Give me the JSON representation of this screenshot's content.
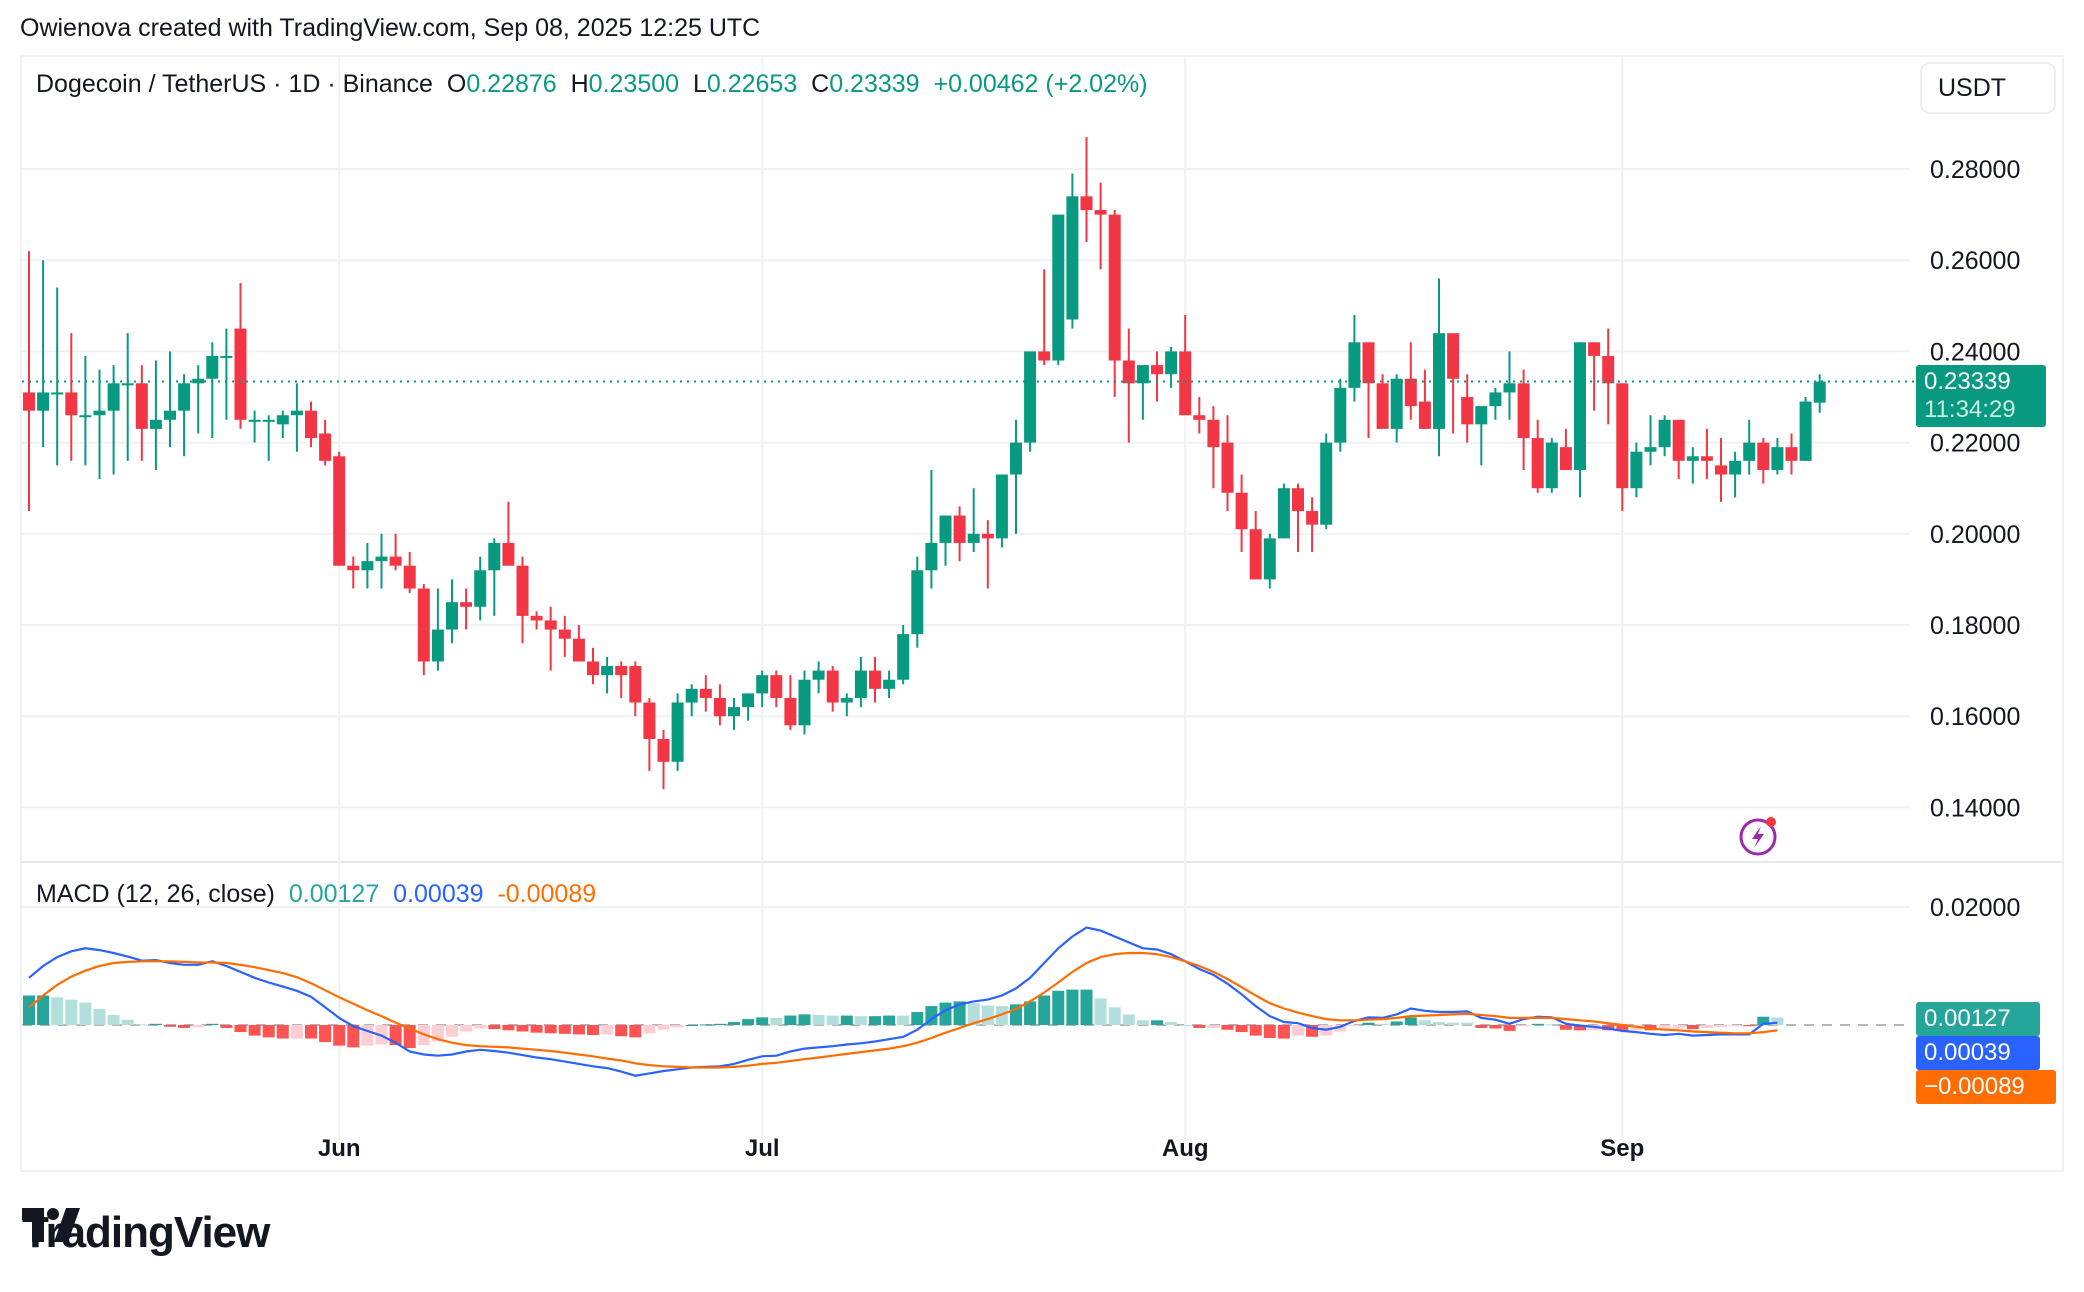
{
  "credit": "Owienova created with TradingView.com, Sep 08, 2025 12:25 UTC",
  "legend": {
    "symbol": "Dogecoin / TetherUS · 1D · Binance",
    "o_label": "O",
    "o": "0.22876",
    "h_label": "H",
    "h": "0.23500",
    "l_label": "L",
    "l": "0.22653",
    "c_label": "C",
    "c": "0.23339",
    "change": "+0.00462 (+2.02%)"
  },
  "currency_button": "USDT",
  "last_price": {
    "value": "0.23339",
    "countdown": "11:34:29"
  },
  "macd_legend": {
    "title": "MACD (12, 26, close)",
    "histogram": "0.00127",
    "macd": "0.00039",
    "signal": "-0.00089"
  },
  "macd_tags": {
    "histogram": "0.00127",
    "macd": "0.00039",
    "signal": "−0.00089"
  },
  "logo": {
    "text": "TradingView"
  },
  "colors": {
    "up": "#089981",
    "down": "#f23645",
    "macd": "#2962ff",
    "signal": "#ff6d00",
    "hist_up": "#26a69a",
    "hist_up_light": "#b2dfdb",
    "hist_down": "#ff5252",
    "hist_down_light": "#ffcdd2",
    "grid": "#f0f1f3"
  },
  "chart_data": [
    {
      "type": "candlestick",
      "title": "Dogecoin / TetherUS · 1D · Binance",
      "ylabel": "USDT",
      "ylim": [
        0.13,
        0.29
      ],
      "yticks": [
        "0.28000",
        "0.26000",
        "0.24000",
        "0.22000",
        "0.20000",
        "0.18000",
        "0.16000",
        "0.14000"
      ],
      "xticks": [
        {
          "label": "Jun",
          "index": 22
        },
        {
          "label": "Jul",
          "index": 52
        },
        {
          "label": "Aug",
          "index": 82
        },
        {
          "label": "Sep",
          "index": 113
        }
      ],
      "last_price": 0.23339,
      "ohlc": [
        [
          0.231,
          0.262,
          0.205,
          0.227
        ],
        [
          0.227,
          0.26,
          0.219,
          0.231
        ],
        [
          0.231,
          0.254,
          0.215,
          0.231
        ],
        [
          0.231,
          0.244,
          0.216,
          0.226
        ],
        [
          0.226,
          0.239,
          0.215,
          0.226
        ],
        [
          0.226,
          0.236,
          0.212,
          0.227
        ],
        [
          0.227,
          0.237,
          0.213,
          0.233
        ],
        [
          0.233,
          0.244,
          0.216,
          0.233
        ],
        [
          0.233,
          0.237,
          0.216,
          0.223
        ],
        [
          0.223,
          0.238,
          0.214,
          0.225
        ],
        [
          0.225,
          0.24,
          0.219,
          0.227
        ],
        [
          0.227,
          0.235,
          0.217,
          0.233
        ],
        [
          0.233,
          0.237,
          0.222,
          0.234
        ],
        [
          0.234,
          0.242,
          0.221,
          0.239
        ],
        [
          0.239,
          0.245,
          0.225,
          0.239
        ],
        [
          0.245,
          0.255,
          0.223,
          0.225
        ],
        [
          0.225,
          0.227,
          0.22,
          0.225
        ],
        [
          0.225,
          0.226,
          0.216,
          0.225
        ],
        [
          0.224,
          0.227,
          0.221,
          0.226
        ],
        [
          0.226,
          0.233,
          0.218,
          0.227
        ],
        [
          0.227,
          0.229,
          0.219,
          0.221
        ],
        [
          0.222,
          0.225,
          0.215,
          0.216
        ],
        [
          0.217,
          0.218,
          0.201,
          0.193
        ],
        [
          0.193,
          0.195,
          0.188,
          0.192
        ],
        [
          0.192,
          0.198,
          0.188,
          0.194
        ],
        [
          0.194,
          0.2,
          0.188,
          0.195
        ],
        [
          0.195,
          0.2,
          0.192,
          0.193
        ],
        [
          0.193,
          0.196,
          0.187,
          0.188
        ],
        [
          0.188,
          0.189,
          0.169,
          0.172
        ],
        [
          0.172,
          0.188,
          0.17,
          0.179
        ],
        [
          0.179,
          0.19,
          0.176,
          0.185
        ],
        [
          0.185,
          0.188,
          0.179,
          0.184
        ],
        [
          0.184,
          0.195,
          0.181,
          0.192
        ],
        [
          0.192,
          0.199,
          0.182,
          0.198
        ],
        [
          0.198,
          0.207,
          0.195,
          0.193
        ],
        [
          0.193,
          0.195,
          0.176,
          0.182
        ],
        [
          0.182,
          0.183,
          0.179,
          0.181
        ],
        [
          0.181,
          0.184,
          0.17,
          0.179
        ],
        [
          0.179,
          0.182,
          0.173,
          0.177
        ],
        [
          0.177,
          0.18,
          0.172,
          0.172
        ],
        [
          0.172,
          0.175,
          0.167,
          0.169
        ],
        [
          0.169,
          0.173,
          0.165,
          0.171
        ],
        [
          0.171,
          0.172,
          0.164,
          0.169
        ],
        [
          0.171,
          0.172,
          0.16,
          0.163
        ],
        [
          0.163,
          0.164,
          0.148,
          0.155
        ],
        [
          0.155,
          0.157,
          0.144,
          0.15
        ],
        [
          0.15,
          0.165,
          0.148,
          0.163
        ],
        [
          0.163,
          0.167,
          0.16,
          0.166
        ],
        [
          0.166,
          0.169,
          0.161,
          0.164
        ],
        [
          0.164,
          0.167,
          0.158,
          0.16
        ],
        [
          0.16,
          0.164,
          0.157,
          0.162
        ],
        [
          0.162,
          0.165,
          0.159,
          0.165
        ],
        [
          0.165,
          0.17,
          0.162,
          0.169
        ],
        [
          0.169,
          0.17,
          0.162,
          0.164
        ],
        [
          0.164,
          0.169,
          0.157,
          0.158
        ],
        [
          0.158,
          0.17,
          0.156,
          0.168
        ],
        [
          0.168,
          0.172,
          0.165,
          0.17
        ],
        [
          0.17,
          0.171,
          0.161,
          0.163
        ],
        [
          0.163,
          0.165,
          0.16,
          0.164
        ],
        [
          0.164,
          0.173,
          0.162,
          0.17
        ],
        [
          0.17,
          0.173,
          0.163,
          0.166
        ],
        [
          0.166,
          0.17,
          0.164,
          0.168
        ],
        [
          0.168,
          0.18,
          0.167,
          0.178
        ],
        [
          0.178,
          0.195,
          0.175,
          0.192
        ],
        [
          0.192,
          0.214,
          0.188,
          0.198
        ],
        [
          0.198,
          0.204,
          0.193,
          0.204
        ],
        [
          0.204,
          0.206,
          0.194,
          0.198
        ],
        [
          0.198,
          0.21,
          0.196,
          0.2
        ],
        [
          0.2,
          0.203,
          0.188,
          0.199
        ],
        [
          0.199,
          0.204,
          0.197,
          0.213
        ],
        [
          0.213,
          0.225,
          0.2,
          0.22
        ],
        [
          0.22,
          0.234,
          0.218,
          0.24
        ],
        [
          0.24,
          0.258,
          0.237,
          0.238
        ],
        [
          0.238,
          0.268,
          0.237,
          0.27
        ],
        [
          0.247,
          0.279,
          0.245,
          0.274
        ],
        [
          0.274,
          0.287,
          0.264,
          0.271
        ],
        [
          0.271,
          0.277,
          0.258,
          0.27
        ],
        [
          0.27,
          0.271,
          0.23,
          0.238
        ],
        [
          0.238,
          0.245,
          0.22,
          0.233
        ],
        [
          0.233,
          0.236,
          0.225,
          0.237
        ],
        [
          0.237,
          0.24,
          0.229,
          0.235
        ],
        [
          0.235,
          0.241,
          0.232,
          0.24
        ],
        [
          0.24,
          0.248,
          0.227,
          0.226
        ],
        [
          0.226,
          0.23,
          0.222,
          0.225
        ],
        [
          0.225,
          0.228,
          0.21,
          0.219
        ],
        [
          0.22,
          0.226,
          0.205,
          0.209
        ],
        [
          0.209,
          0.213,
          0.196,
          0.201
        ],
        [
          0.201,
          0.205,
          0.19,
          0.19
        ],
        [
          0.19,
          0.2,
          0.188,
          0.199
        ],
        [
          0.199,
          0.211,
          0.199,
          0.21
        ],
        [
          0.21,
          0.211,
          0.196,
          0.205
        ],
        [
          0.205,
          0.208,
          0.196,
          0.202
        ],
        [
          0.202,
          0.222,
          0.201,
          0.22
        ],
        [
          0.22,
          0.234,
          0.218,
          0.232
        ],
        [
          0.232,
          0.248,
          0.229,
          0.242
        ],
        [
          0.242,
          0.241,
          0.221,
          0.233
        ],
        [
          0.233,
          0.235,
          0.224,
          0.223
        ],
        [
          0.223,
          0.235,
          0.22,
          0.234
        ],
        [
          0.234,
          0.242,
          0.225,
          0.228
        ],
        [
          0.229,
          0.236,
          0.223,
          0.223
        ],
        [
          0.223,
          0.256,
          0.217,
          0.244
        ],
        [
          0.244,
          0.242,
          0.222,
          0.234
        ],
        [
          0.23,
          0.235,
          0.22,
          0.224
        ],
        [
          0.224,
          0.226,
          0.215,
          0.228
        ],
        [
          0.228,
          0.232,
          0.225,
          0.231
        ],
        [
          0.231,
          0.24,
          0.225,
          0.233
        ],
        [
          0.233,
          0.236,
          0.214,
          0.221
        ],
        [
          0.221,
          0.225,
          0.209,
          0.21
        ],
        [
          0.21,
          0.221,
          0.209,
          0.22
        ],
        [
          0.219,
          0.223,
          0.214,
          0.214
        ],
        [
          0.214,
          0.242,
          0.208,
          0.242
        ],
        [
          0.242,
          0.242,
          0.227,
          0.239
        ],
        [
          0.239,
          0.245,
          0.224,
          0.233
        ],
        [
          0.233,
          0.233,
          0.205,
          0.21
        ],
        [
          0.21,
          0.22,
          0.208,
          0.218
        ],
        [
          0.218,
          0.226,
          0.215,
          0.219
        ],
        [
          0.219,
          0.226,
          0.217,
          0.225
        ],
        [
          0.225,
          0.224,
          0.212,
          0.216
        ],
        [
          0.216,
          0.219,
          0.211,
          0.217
        ],
        [
          0.217,
          0.223,
          0.212,
          0.216
        ],
        [
          0.215,
          0.221,
          0.207,
          0.213
        ],
        [
          0.213,
          0.218,
          0.208,
          0.216
        ],
        [
          0.216,
          0.225,
          0.213,
          0.22
        ],
        [
          0.22,
          0.221,
          0.211,
          0.214
        ],
        [
          0.214,
          0.221,
          0.213,
          0.219
        ],
        [
          0.219,
          0.222,
          0.213,
          0.216
        ],
        [
          0.216,
          0.23,
          0.216,
          0.229
        ],
        [
          0.22876,
          0.235,
          0.22653,
          0.23339
        ]
      ]
    },
    {
      "type": "line",
      "title": "MACD (12, 26, close)",
      "ylim": [
        -0.01,
        0.023
      ],
      "yticks": [
        "0.02000"
      ],
      "series": [
        {
          "name": "MACD",
          "color": "#2962ff",
          "values": [
            0.008,
            0.01,
            0.0115,
            0.0125,
            0.013,
            0.0127,
            0.0122,
            0.0116,
            0.0109,
            0.011,
            0.0105,
            0.0102,
            0.0102,
            0.0108,
            0.01,
            0.009,
            0.008,
            0.0072,
            0.0065,
            0.0058,
            0.0048,
            0.003,
            0.0012,
            -0.0002,
            -0.001,
            -0.0018,
            -0.003,
            -0.0045,
            -0.005,
            -0.0052,
            -0.005,
            -0.0045,
            -0.0042,
            -0.0044,
            -0.0047,
            -0.0051,
            -0.0055,
            -0.0058,
            -0.0062,
            -0.0066,
            -0.007,
            -0.0073,
            -0.0079,
            -0.0086,
            -0.0082,
            -0.0078,
            -0.0075,
            -0.0072,
            -0.0071,
            -0.007,
            -0.0066,
            -0.0059,
            -0.0053,
            -0.0052,
            -0.0045,
            -0.004,
            -0.0038,
            -0.0036,
            -0.0033,
            -0.0031,
            -0.0028,
            -0.0024,
            -0.002,
            -0.0008,
            0.001,
            0.0025,
            0.0035,
            0.004,
            0.0043,
            0.005,
            0.0062,
            0.008,
            0.0105,
            0.013,
            0.015,
            0.0165,
            0.016,
            0.015,
            0.014,
            0.013,
            0.0128,
            0.012,
            0.0108,
            0.0095,
            0.0085,
            0.007,
            0.0052,
            0.0032,
            0.0015,
            0.0005,
            0.0003,
            -0.0005,
            -0.0008,
            -0.0003,
            0.0007,
            0.0013,
            0.0012,
            0.0018,
            0.0028,
            0.0024,
            0.0022,
            0.0022,
            0.0023,
            0.0012,
            0.0009,
            0.0002,
            0.001,
            0.0014,
            0.0013,
            0.0002,
            -0.0001,
            -0.0003,
            -0.0006,
            -0.001,
            -0.0012,
            -0.0015,
            -0.0017,
            -0.0015,
            -0.0018,
            -0.0017,
            -0.0016,
            -0.0016,
            -0.0016,
            0.0002,
            0.00039
          ]
        },
        {
          "name": "Signal",
          "color": "#ff6d00",
          "values": [
            0.003,
            0.005,
            0.0068,
            0.0082,
            0.0092,
            0.01,
            0.0105,
            0.0107,
            0.0108,
            0.0108,
            0.0108,
            0.0107,
            0.0106,
            0.0106,
            0.0105,
            0.0102,
            0.0098,
            0.0093,
            0.0088,
            0.0081,
            0.0071,
            0.0059,
            0.0047,
            0.0036,
            0.0025,
            0.0015,
            0.0004,
            -0.0006,
            -0.0016,
            -0.0024,
            -0.003,
            -0.0034,
            -0.0036,
            -0.0037,
            -0.0038,
            -0.004,
            -0.0042,
            -0.0044,
            -0.0047,
            -0.005,
            -0.0053,
            -0.0057,
            -0.006,
            -0.0065,
            -0.0068,
            -0.007,
            -0.0071,
            -0.0072,
            -0.0072,
            -0.0072,
            -0.0071,
            -0.0069,
            -0.0066,
            -0.0064,
            -0.0061,
            -0.0058,
            -0.0055,
            -0.0052,
            -0.0049,
            -0.0046,
            -0.0043,
            -0.004,
            -0.0036,
            -0.003,
            -0.0022,
            -0.0013,
            -0.0005,
            0.0003,
            0.001,
            0.0018,
            0.0027,
            0.004,
            0.0055,
            0.0072,
            0.009,
            0.0105,
            0.0115,
            0.012,
            0.0122,
            0.0122,
            0.012,
            0.0115,
            0.0108,
            0.01,
            0.009,
            0.0078,
            0.0064,
            0.005,
            0.0037,
            0.0028,
            0.0021,
            0.0015,
            0.001,
            0.0008,
            0.0008,
            0.0009,
            0.001,
            0.0012,
            0.0015,
            0.0016,
            0.0017,
            0.0018,
            0.0019,
            0.0017,
            0.0015,
            0.0012,
            0.0012,
            0.0012,
            0.0012,
            0.001,
            0.0008,
            0.0006,
            0.0003,
            0.0,
            -0.0003,
            -0.0006,
            -0.0008,
            -0.0009,
            -0.0011,
            -0.0012,
            -0.0013,
            -0.0014,
            -0.0014,
            -0.0012,
            -0.00089
          ]
        }
      ],
      "histogram": {
        "name": "Histogram",
        "values": "MACD - Signal",
        "last": 0.00127
      }
    }
  ]
}
